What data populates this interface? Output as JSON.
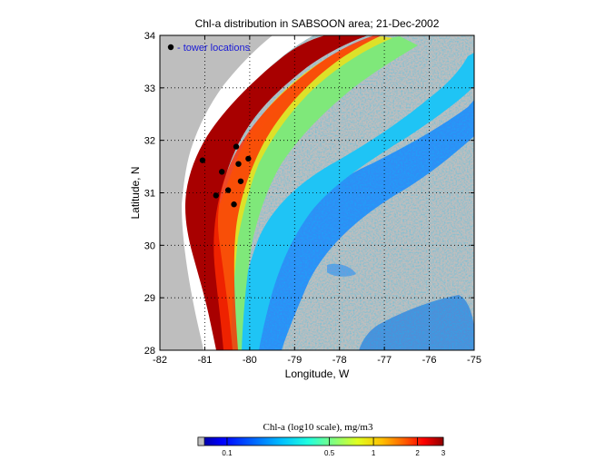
{
  "title": "Chl-a distribution in SABSOON area; 21-Dec-2002",
  "map": {
    "xlabel": "Longitude, W",
    "ylabel": "Latitude, N",
    "xlim": [
      -82,
      -75
    ],
    "ylim": [
      28,
      34
    ],
    "x_ticks": [
      "-82",
      "-81",
      "-80",
      "-79",
      "-78",
      "-77",
      "-76",
      "-75"
    ],
    "y_ticks": [
      "28",
      "29",
      "30",
      "31",
      "32",
      "33",
      "34"
    ],
    "grid": "dotted",
    "land_color": "#ffffff",
    "no_data_color": "#bebebe",
    "legend": {
      "marker": "black-dot",
      "label": "- tower locations",
      "label_color": "#1b1bd6",
      "placement": "top-left"
    },
    "towers": [
      {
        "lon": -81.05,
        "lat": 31.62
      },
      {
        "lon": -80.3,
        "lat": 31.88
      },
      {
        "lon": -80.03,
        "lat": 31.65
      },
      {
        "lon": -80.25,
        "lat": 31.55
      },
      {
        "lon": -80.62,
        "lat": 31.4
      },
      {
        "lon": -80.2,
        "lat": 31.22
      },
      {
        "lon": -80.48,
        "lat": 31.05
      },
      {
        "lon": -80.75,
        "lat": 30.95
      },
      {
        "lon": -80.35,
        "lat": 30.78
      }
    ]
  },
  "colorbar": {
    "label": "Chl-a (log10 scale), mg/m3",
    "ticks": [
      "0.1",
      "0.5",
      "1",
      "2",
      "3"
    ],
    "colors": [
      "#00008f",
      "#0000ff",
      "#0060ff",
      "#00bfff",
      "#20ffdf",
      "#80ff80",
      "#dfff20",
      "#ffbf00",
      "#ff6000",
      "#ff0000",
      "#8f0000"
    ]
  }
}
